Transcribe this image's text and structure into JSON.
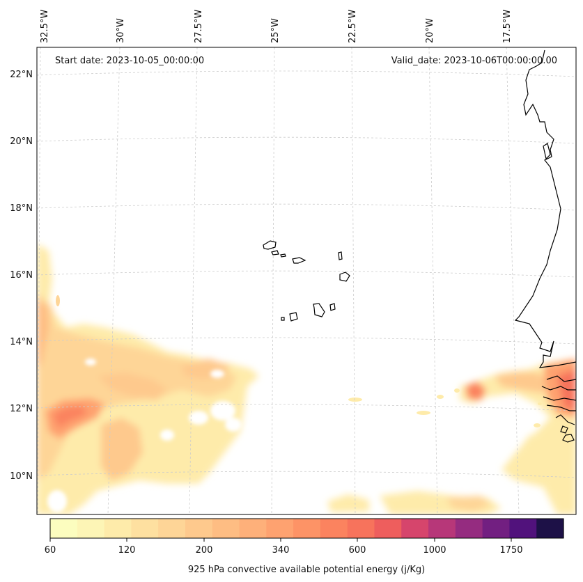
{
  "map": {
    "start_date": "Start date: 2023-10-05_00:00:00",
    "valid_date": "Valid_date: 2023-10-06T00:00:00.00",
    "lon_labels": [
      "32.5°W",
      "30°W",
      "27.5°W",
      "25°W",
      "22.5°W",
      "20°W",
      "17.5°W"
    ],
    "lat_labels": [
      "22°N",
      "20°N",
      "18°N",
      "16°N",
      "14°N",
      "12°N",
      "10°N"
    ],
    "colors": {
      "coast": "#000000",
      "grid": "#cccccc",
      "frame": "#000000"
    }
  },
  "colorbar": {
    "title": "925 hPa convective available potential energy (j/Kg)",
    "tick_labels": [
      "60",
      "120",
      "200",
      "340",
      "600",
      "1000",
      "1750"
    ],
    "colors": [
      "#fcfdbf",
      "#fdf5b6",
      "#feebaa",
      "#fee0a0",
      "#fed597",
      "#fec98d",
      "#febd83",
      "#feb07a",
      "#fea270",
      "#fd9366",
      "#fb835f",
      "#f7735c",
      "#ee5e5d",
      "#d6456c",
      "#b73779",
      "#952c80",
      "#721f81",
      "#51127c",
      "#1d1147"
    ]
  }
}
